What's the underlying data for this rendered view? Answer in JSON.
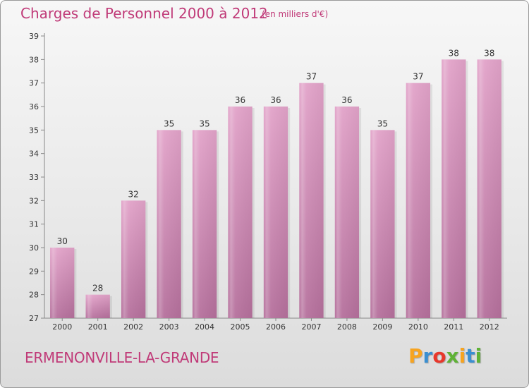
{
  "page": {
    "title": "Charges de Personnel 2000 à 2012",
    "subtitle": "(en milliers d'€)",
    "commune": "ERMENONVILLE-LA-GRANDE",
    "logo": {
      "letters": [
        "P",
        "r",
        "o",
        "x",
        "i",
        "t",
        "i"
      ],
      "colors": [
        "#f7a420",
        "#3a8fd1",
        "#e8382c",
        "#5fb236",
        "#f7a420",
        "#3a8fd1",
        "#5fb236"
      ]
    }
  },
  "chart_data": {
    "type": "bar",
    "title": "Charges de Personnel 2000 à 2012",
    "subtitle": "(en milliers d'€)",
    "categories": [
      "2000",
      "2001",
      "2002",
      "2003",
      "2004",
      "2005",
      "2006",
      "2007",
      "2008",
      "2009",
      "2010",
      "2011",
      "2012"
    ],
    "values": [
      30,
      28,
      32,
      35,
      35,
      36,
      36,
      37,
      36,
      35,
      37,
      38,
      38
    ],
    "ylim": [
      27,
      39
    ],
    "yticks": [
      27,
      28,
      29,
      30,
      31,
      32,
      33,
      34,
      35,
      36,
      37,
      38,
      39
    ],
    "grid": false,
    "legend": "none",
    "colors": {
      "bar_top": "#e2a3c9",
      "bar_bottom": "#b5709c",
      "axis": "#888888",
      "label": "#333333"
    }
  }
}
